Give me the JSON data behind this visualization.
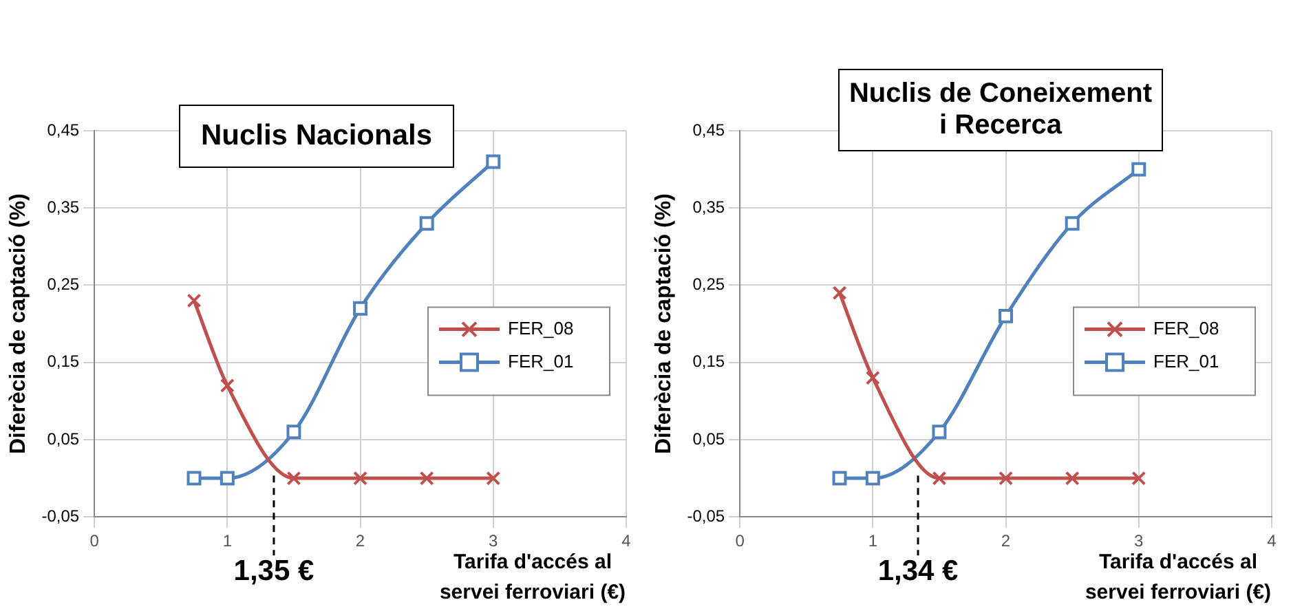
{
  "chart_data": [
    {
      "type": "line",
      "title": "Nuclis Nacionals",
      "xlabel": "Tarifa d'accés al servei ferroviari (€)",
      "ylabel": "Diferècia de captació (%)",
      "x": [
        0.75,
        1,
        1.5,
        2,
        2.5,
        3
      ],
      "series": [
        {
          "name": "FER_08",
          "color": "#c0504d",
          "marker": "cross",
          "values": [
            0.23,
            0.12,
            0,
            0,
            0,
            0
          ]
        },
        {
          "name": "FER_01",
          "color": "#4f81bd",
          "marker": "square",
          "values": [
            0,
            0,
            0.06,
            0.22,
            0.33,
            0.41
          ]
        }
      ],
      "xlim": [
        0,
        4
      ],
      "xticks": [
        0,
        1,
        2,
        3,
        4
      ],
      "ylim": [
        -0.05,
        0.45
      ],
      "yticks": [
        {
          "value": -0.05,
          "label": "-0,05"
        },
        {
          "value": 0.05,
          "label": "0,05"
        },
        {
          "value": 0.15,
          "label": "0,15"
        },
        {
          "value": 0.25,
          "label": "0,25"
        },
        {
          "value": 0.35,
          "label": "0,35"
        },
        {
          "value": 0.45,
          "label": "0,45"
        }
      ],
      "ref_lines": [
        {
          "axis": "x",
          "value": 1.35,
          "label": "1,35 €",
          "line_style": "dashed",
          "color": "#000000"
        }
      ],
      "grid": true,
      "legend": "right"
    },
    {
      "type": "line",
      "title": "Nuclis de Coneixement i Recerca",
      "xlabel": "Tarifa d'accés al servei ferroviari (€)",
      "ylabel": "Diferècia de captació (%)",
      "x": [
        0.75,
        1,
        1.5,
        2,
        2.5,
        3
      ],
      "series": [
        {
          "name": "FER_08",
          "color": "#c0504d",
          "marker": "cross",
          "values": [
            0.24,
            0.13,
            0,
            0,
            0,
            0
          ]
        },
        {
          "name": "FER_01",
          "color": "#4f81bd",
          "marker": "square",
          "values": [
            0,
            0,
            0.06,
            0.21,
            0.33,
            0.4
          ]
        }
      ],
      "xlim": [
        0,
        4
      ],
      "xticks": [
        0,
        1,
        2,
        3,
        4
      ],
      "ylim": [
        -0.05,
        0.45
      ],
      "yticks": [
        {
          "value": -0.05,
          "label": "-0,05"
        },
        {
          "value": 0.05,
          "label": "0,05"
        },
        {
          "value": 0.15,
          "label": "0,15"
        },
        {
          "value": 0.25,
          "label": "0,25"
        },
        {
          "value": 0.35,
          "label": "0,35"
        },
        {
          "value": 0.45,
          "label": "0,45"
        }
      ],
      "ref_lines": [
        {
          "axis": "x",
          "value": 1.34,
          "label": "1,34 €",
          "line_style": "dashed",
          "color": "#000000"
        }
      ],
      "grid": true,
      "legend": "right"
    }
  ]
}
